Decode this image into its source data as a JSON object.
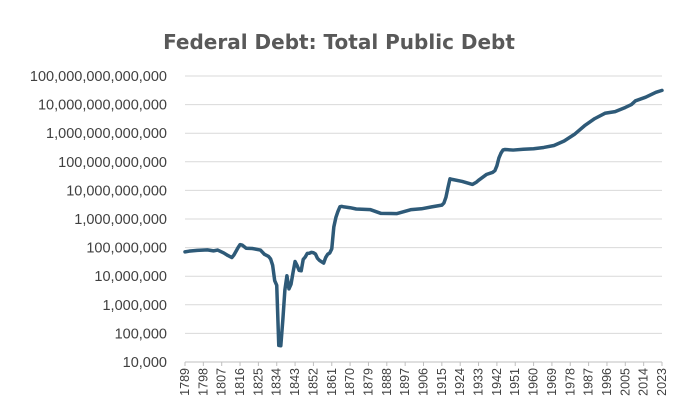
{
  "chart_data": {
    "type": "line",
    "title": "Federal Debt: Total Public Debt",
    "xlabel": "",
    "ylabel": "",
    "y_scale": "log",
    "ylim": [
      10000,
      100000000000000
    ],
    "y_ticks": [
      10000,
      100000,
      1000000,
      10000000,
      100000000,
      1000000000,
      10000000000,
      100000000000,
      1000000000000,
      10000000000000,
      100000000000000
    ],
    "y_tick_labels": [
      "10,000",
      "100,000",
      "1,000,000",
      "10,000,000",
      "100,000,000",
      "1,000,000,000",
      "10,000,000,000",
      "100,000,000,000",
      "1,000,000,000,000",
      "10,000,000,000,000",
      "100,000,000,000,000"
    ],
    "xlim": [
      1789,
      2023
    ],
    "x_ticks": [
      1789,
      1798,
      1807,
      1816,
      1825,
      1834,
      1843,
      1852,
      1861,
      1870,
      1879,
      1888,
      1897,
      1906,
      1915,
      1924,
      1933,
      1942,
      1951,
      1960,
      1969,
      1978,
      1987,
      1996,
      2005,
      2014,
      2023
    ],
    "grid": true,
    "legend": "none",
    "color": "#2e5a78",
    "series": [
      {
        "x": [
          1789,
          1791,
          1795,
          1800,
          1803,
          1805,
          1808,
          1810,
          1812,
          1813,
          1815,
          1816,
          1817,
          1819,
          1822,
          1826,
          1828,
          1830,
          1831,
          1832,
          1833,
          1834,
          1835,
          1836,
          1837,
          1838,
          1839,
          1840,
          1841,
          1842,
          1843,
          1844,
          1845,
          1846,
          1847,
          1848,
          1849,
          1850,
          1851,
          1852,
          1853,
          1854,
          1855,
          1856,
          1857,
          1858,
          1859,
          1860,
          1861,
          1862,
          1863,
          1864,
          1865,
          1866,
          1867,
          1870,
          1873,
          1880,
          1885,
          1890,
          1893,
          1900,
          1905,
          1910,
          1915,
          1916,
          1917,
          1918,
          1919,
          1920,
          1925,
          1930,
          1932,
          1933,
          1935,
          1937,
          1940,
          1941,
          1942,
          1943,
          1944,
          1945,
          1946,
          1950,
          1955,
          1960,
          1965,
          1970,
          1975,
          1980,
          1985,
          1990,
          1995,
          2000,
          2005,
          2008,
          2010,
          2015,
          2020,
          2023
        ],
        "y": [
          71000000,
          75000000,
          80000000,
          83000000,
          77000000,
          82000000,
          65000000,
          53000000,
          45000000,
          55000000,
          99000000,
          127000000,
          123000000,
          95000000,
          93000000,
          82000000,
          58000000,
          49000000,
          40000000,
          24000000,
          7000000,
          4800000,
          38000,
          37000,
          300000,
          3300000,
          10400000,
          3600000,
          5200000,
          13500000,
          32700000,
          23500000,
          15900000,
          15500000,
          38800000,
          47000000,
          63100000,
          63400000,
          68300000,
          66100000,
          59800000,
          42200000,
          35600000,
          32000000,
          28700000,
          44900000,
          58500000,
          64800000,
          90600000,
          524000000,
          1120000000,
          1816000000,
          2678000000,
          2756000000,
          2650000000,
          2480000000,
          2234000000,
          2120000000,
          1578000000,
          1552000000,
          1545000000,
          2136000000,
          2274000000,
          2652000000,
          3058000000,
          3610000000,
          5718000000,
          12455000000,
          25485000000,
          24299000000,
          20516000000,
          16185000000,
          19487000000,
          22539000000,
          28700000000,
          36400000000,
          42968000000,
          48961000000,
          72422000000,
          136696000000,
          201003000000,
          258682000000,
          269422000000,
          257357000000,
          274374000000,
          286331000000,
          317274000000,
          370919000000,
          533189000000,
          907701000000,
          1823103000000,
          3233313000000,
          4973983000000,
          5674178000000,
          7932710000000,
          10024725000000,
          13561623000000,
          18150618000000,
          26945391000000,
          31400000000000
        ]
      }
    ]
  }
}
